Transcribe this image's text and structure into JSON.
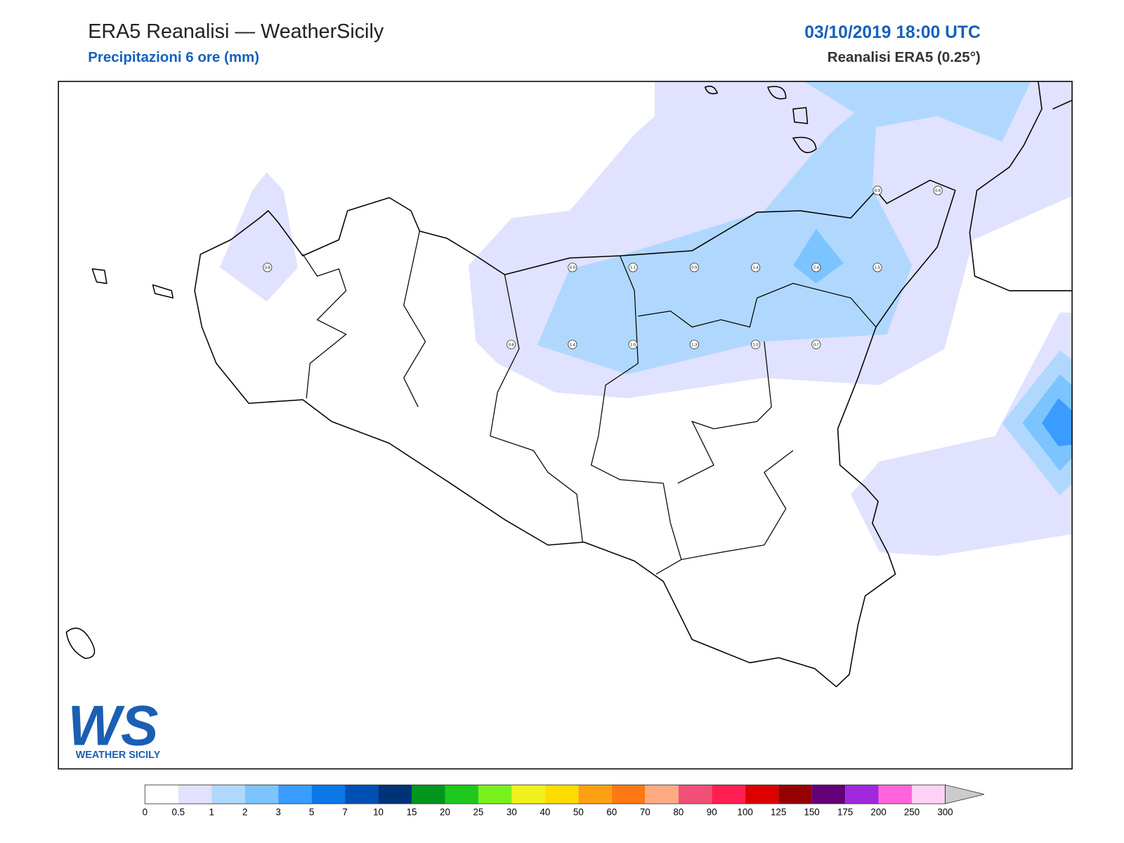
{
  "header": {
    "title": "ERA5 Reanalisi — WeatherSicily",
    "subtitle": "Precipitazioni 6 ore (mm)",
    "datetime": "03/10/2019 18:00 UTC",
    "source": "Reanalisi ERA5 (0.25°)"
  },
  "stations": [
    "0.9",
    "0.6",
    "0.8",
    "0.9",
    "1.1",
    "0.9",
    "1.4",
    "2.4",
    "1.5",
    "0.8",
    "1.4",
    "1.0",
    "1.3",
    "1.0",
    "0.7"
  ],
  "legend": {
    "levels": [
      0,
      0.5,
      1,
      2,
      3,
      5,
      7,
      10,
      15,
      20,
      25,
      30,
      40,
      50,
      60,
      70,
      80,
      90,
      100,
      125,
      150,
      175,
      200,
      250,
      300
    ],
    "colors": [
      "#ffffff",
      "#e0e2ff",
      "#b0d8ff",
      "#7cc4ff",
      "#3a9cff",
      "#0a78e6",
      "#0050b4",
      "#003278",
      "#00961e",
      "#1ec81e",
      "#78f01e",
      "#f0f01e",
      "#ffdc00",
      "#ffa014",
      "#ff7814",
      "#ffaa82",
      "#f05078",
      "#ff1e50",
      "#dc0000",
      "#960000",
      "#640078",
      "#a028dc",
      "#ff64dc",
      "#ffd2f5"
    ],
    "extend_color": "#cccccc"
  },
  "logo": {
    "mark": "WS",
    "name": "WEATHER SICILY"
  }
}
